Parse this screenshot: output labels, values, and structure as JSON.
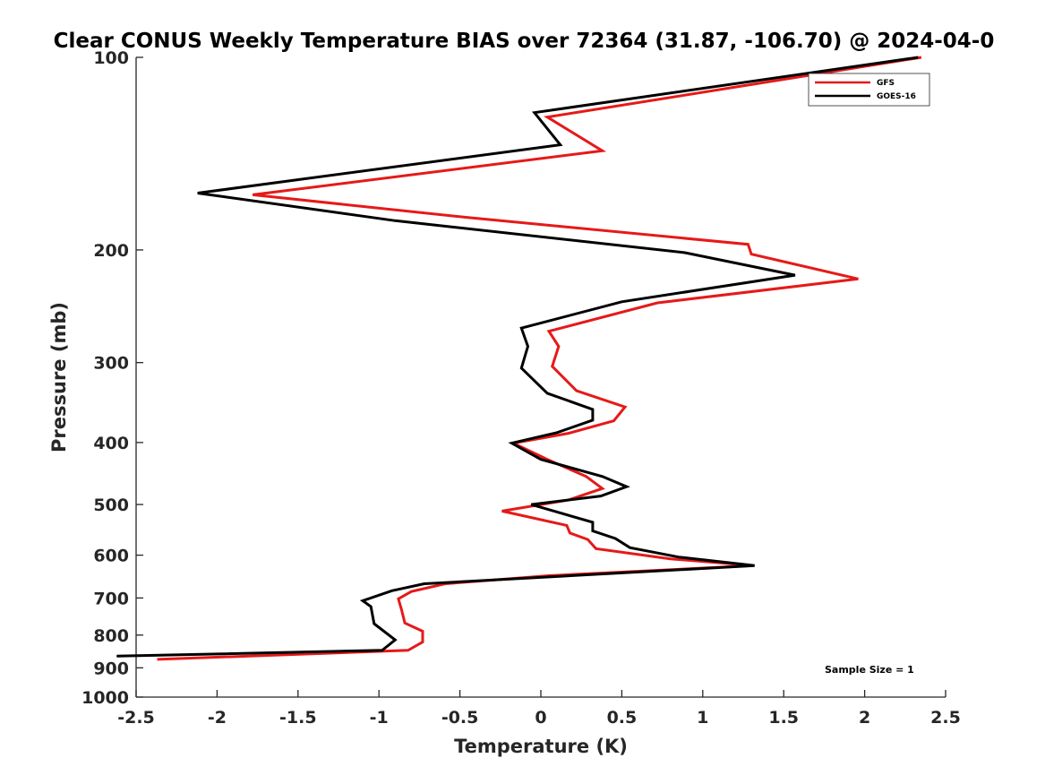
{
  "chart_data": {
    "type": "line",
    "title": "Clear CONUS Weekly Temperature BIAS over 72364 (31.87, -106.70) @ 2024-04-0",
    "xlabel": "Temperature (K)",
    "ylabel": "Pressure (mb)",
    "xlim": [
      -2.5,
      2.5
    ],
    "ylim": [
      1000,
      100
    ],
    "y_scale": "log",
    "x_ticks": [
      "-2.5",
      "-2",
      "-1.5",
      "-1",
      "-0.5",
      "0",
      "0.5",
      "1",
      "1.5",
      "2",
      "2.5"
    ],
    "y_ticks": [
      "100",
      "200",
      "300",
      "400",
      "500",
      "600",
      "700",
      "800",
      "900",
      "1000"
    ],
    "grid": false,
    "legend_position": "top-right",
    "annotation": "Sample Size = 1",
    "series": [
      {
        "name": "GFS",
        "color": "#e61919",
        "points": [
          [
            2.35,
            100
          ],
          [
            0.04,
            124
          ],
          [
            0.38,
            140
          ],
          [
            -1.78,
            164
          ],
          [
            -0.45,
            178
          ],
          [
            1.28,
            196
          ],
          [
            1.3,
            203
          ],
          [
            1.96,
            222
          ],
          [
            0.72,
            242
          ],
          [
            0.05,
            268
          ],
          [
            0.11,
            283
          ],
          [
            0.07,
            304
          ],
          [
            0.22,
            332
          ],
          [
            0.52,
            352
          ],
          [
            0.45,
            370
          ],
          [
            0.17,
            387
          ],
          [
            -0.17,
            401
          ],
          [
            0.04,
            425
          ],
          [
            0.28,
            452
          ],
          [
            0.38,
            472
          ],
          [
            0.17,
            492
          ],
          [
            -0.24,
            512
          ],
          [
            0.16,
            539
          ],
          [
            0.18,
            554
          ],
          [
            0.29,
            567
          ],
          [
            0.34,
            586
          ],
          [
            0.8,
            608
          ],
          [
            1.31,
            623
          ],
          [
            0.05,
            646
          ],
          [
            -0.59,
            665
          ],
          [
            -0.8,
            684
          ],
          [
            -0.88,
            702
          ],
          [
            -0.86,
            731
          ],
          [
            -0.84,
            766
          ],
          [
            -0.73,
            789
          ],
          [
            -0.73,
            820
          ],
          [
            -0.82,
            845
          ],
          [
            -2.37,
            873
          ]
        ]
      },
      {
        "name": "GOES-16",
        "color": "#000000",
        "points": [
          [
            2.33,
            100
          ],
          [
            -0.04,
            122
          ],
          [
            0.12,
            137
          ],
          [
            -2.12,
            163
          ],
          [
            -0.9,
            180
          ],
          [
            0.89,
            202
          ],
          [
            1.57,
            219
          ],
          [
            0.5,
            241
          ],
          [
            -0.12,
            265
          ],
          [
            -0.08,
            283
          ],
          [
            -0.12,
            306
          ],
          [
            0.04,
            335
          ],
          [
            0.32,
            355
          ],
          [
            0.32,
            369
          ],
          [
            0.1,
            386
          ],
          [
            -0.18,
            401
          ],
          [
            0.0,
            425
          ],
          [
            0.38,
            452
          ],
          [
            0.53,
            469
          ],
          [
            0.37,
            485
          ],
          [
            -0.06,
            500
          ],
          [
            0.32,
            533
          ],
          [
            0.32,
            550
          ],
          [
            0.46,
            565
          ],
          [
            0.55,
            584
          ],
          [
            0.85,
            604
          ],
          [
            1.32,
            623
          ],
          [
            -0.72,
            665
          ],
          [
            -0.92,
            682
          ],
          [
            -1.1,
            707
          ],
          [
            -1.05,
            722
          ],
          [
            -1.03,
            768
          ],
          [
            -0.9,
            814
          ],
          [
            -0.98,
            845
          ],
          [
            -2.62,
            863
          ]
        ]
      }
    ]
  }
}
